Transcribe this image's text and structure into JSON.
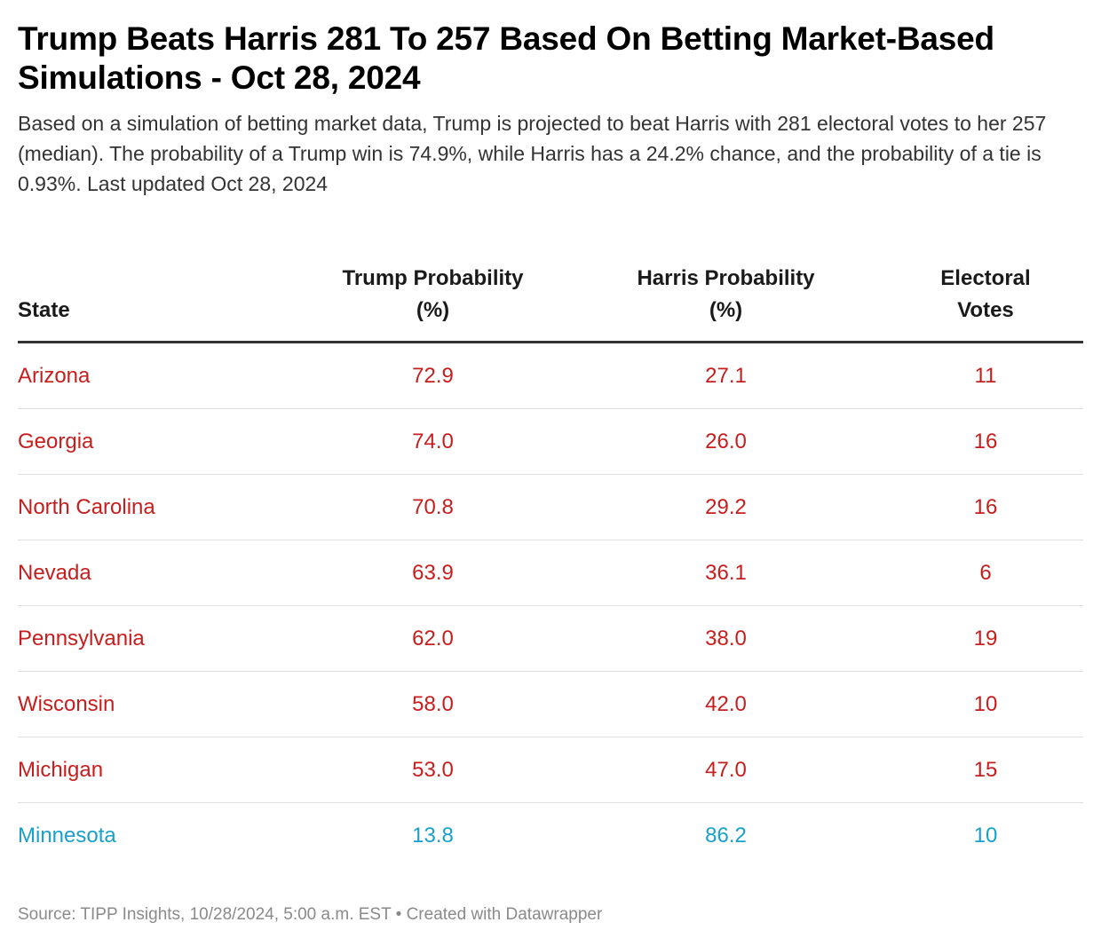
{
  "header": {
    "title": "Trump Beats Harris 281 To 257 Based On Betting Market-Based Simulations - Oct 28, 2024",
    "subtitle": "Based on a simulation of betting market data, Trump is projected to beat Harris with 281 electoral votes to her 257 (median). The probability of a Trump win is 74.9%, while Harris has a 24.2% chance, and the probability of a tie is 0.93%. Last updated Oct 28, 2024"
  },
  "colors": {
    "republican": "#c71e1d",
    "democrat": "#18a1cd"
  },
  "chart_data": {
    "type": "table",
    "title": "Trump Beats Harris 281 To 257 Based On Betting Market-Based Simulations - Oct 28, 2024",
    "columns": [
      {
        "key": "state",
        "label": "State"
      },
      {
        "key": "trump",
        "label": "Trump Probability (%)"
      },
      {
        "key": "harris",
        "label": "Harris Probability (%)"
      },
      {
        "key": "ev",
        "label": "Electoral Votes"
      }
    ],
    "rows": [
      {
        "state": "Arizona",
        "trump": "72.9",
        "harris": "27.1",
        "ev": "11",
        "lean": "republican"
      },
      {
        "state": "Georgia",
        "trump": "74.0",
        "harris": "26.0",
        "ev": "16",
        "lean": "republican"
      },
      {
        "state": "North Carolina",
        "trump": "70.8",
        "harris": "29.2",
        "ev": "16",
        "lean": "republican"
      },
      {
        "state": "Nevada",
        "trump": "63.9",
        "harris": "36.1",
        "ev": "6",
        "lean": "republican"
      },
      {
        "state": "Pennsylvania",
        "trump": "62.0",
        "harris": "38.0",
        "ev": "19",
        "lean": "republican"
      },
      {
        "state": "Wisconsin",
        "trump": "58.0",
        "harris": "42.0",
        "ev": "10",
        "lean": "republican"
      },
      {
        "state": "Michigan",
        "trump": "53.0",
        "harris": "47.0",
        "ev": "15",
        "lean": "republican"
      },
      {
        "state": "Minnesota",
        "trump": "13.8",
        "harris": "86.2",
        "ev": "10",
        "lean": "democrat"
      }
    ]
  },
  "footer": {
    "source": "Source: TIPP Insights, 10/28/2024, 5:00 a.m. EST • Created with Datawrapper"
  }
}
